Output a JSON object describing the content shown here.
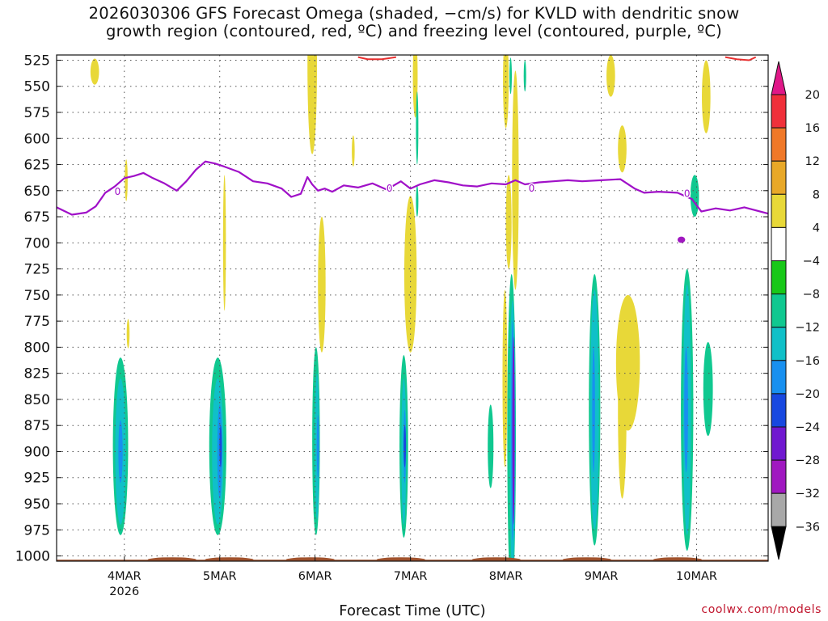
{
  "chart_data": {
    "type": "heatmap",
    "title": [
      "2026030306 GFS Forecast Omega (shaded, −cm/s) for KVLD with dendritic snow",
      "growth region (contoured, red, ºC) and freezing level (contoured, purple, ºC)"
    ],
    "xlabel": "Forecast Time (UTC)",
    "credit": "coolwx.com/models",
    "yaxis": {
      "ticks": [
        525,
        550,
        575,
        600,
        625,
        650,
        675,
        700,
        725,
        750,
        775,
        800,
        825,
        850,
        875,
        900,
        925,
        950,
        975,
        1000
      ],
      "range": [
        520,
        1005
      ],
      "units": "hPa",
      "inverted": true
    },
    "xaxis": {
      "range_days": [
        3.29,
        10.75
      ],
      "ticks": [
        {
          "day": 4,
          "label": "4MAR",
          "sublabel": "2026"
        },
        {
          "day": 5,
          "label": "5MAR",
          "sublabel": ""
        },
        {
          "day": 6,
          "label": "6MAR",
          "sublabel": ""
        },
        {
          "day": 7,
          "label": "7MAR",
          "sublabel": ""
        },
        {
          "day": 8,
          "label": "8MAR",
          "sublabel": ""
        },
        {
          "day": 9,
          "label": "9MAR",
          "sublabel": ""
        },
        {
          "day": 10,
          "label": "10MAR",
          "sublabel": ""
        }
      ],
      "grid": true
    },
    "colorbar": {
      "labels": [
        "20",
        "16",
        "12",
        "8",
        "4",
        "−4",
        "−8",
        "−12",
        "−16",
        "−20",
        "−24",
        "−28",
        "−32",
        "−36"
      ],
      "colors": [
        "#f0303a",
        "#f07828",
        "#e8a828",
        "#e8d838",
        "#ffffff",
        "#18c818",
        "#10c890",
        "#10c0c8",
        "#1890f0",
        "#1848e0",
        "#7018d0",
        "#a018c0",
        "#a8a8a8"
      ],
      "top_arrow_color": "#e01888",
      "bottom_arrow_color": "#000000"
    },
    "colors": {
      "freezing_level": "#a010c8",
      "dgz": "#e83030",
      "ground": "#a0522d"
    },
    "freezing_level": {
      "day": [
        3.29,
        3.45,
        3.6,
        3.7,
        3.8,
        3.9,
        4.0,
        4.1,
        4.2,
        4.3,
        4.42,
        4.55,
        4.65,
        4.75,
        4.85,
        4.95,
        5.05,
        5.2,
        5.35,
        5.5,
        5.65,
        5.75,
        5.85,
        5.92,
        5.97,
        6.03,
        6.1,
        6.18,
        6.3,
        6.45,
        6.6,
        6.75,
        6.9,
        7.0,
        7.1,
        7.25,
        7.4,
        7.55,
        7.7,
        7.85,
        8.0,
        8.1,
        8.2,
        8.35,
        8.5,
        8.65,
        8.8,
        9.0,
        9.2,
        9.35,
        9.45,
        9.6,
        9.8,
        9.95,
        10.05,
        10.2,
        10.35,
        10.5,
        10.75
      ],
      "hpa": [
        666,
        673,
        671,
        665,
        652,
        646,
        638,
        636,
        633,
        638,
        643,
        650,
        641,
        630,
        622,
        624,
        627,
        632,
        641,
        643,
        648,
        656,
        653,
        637,
        644,
        650,
        648,
        651,
        645,
        647,
        643,
        649,
        641,
        648,
        644,
        640,
        642,
        645,
        646,
        643,
        644,
        640,
        644,
        642,
        641,
        640,
        641,
        640,
        639,
        648,
        652,
        651,
        652,
        658,
        670,
        667,
        669,
        666,
        672
      ]
    },
    "freezing_level_labels": [
      {
        "day": 3.93,
        "hpa": 650,
        "text": "0"
      },
      {
        "day": 6.78,
        "hpa": 647,
        "text": "0"
      },
      {
        "day": 8.27,
        "hpa": 647,
        "text": "0"
      },
      {
        "day": 9.9,
        "hpa": 652,
        "text": "0"
      }
    ],
    "dgz_segments": [
      {
        "day": [
          6.45,
          6.55,
          6.7,
          6.78,
          6.85
        ],
        "hpa": [
          522,
          524,
          524,
          523,
          522
        ]
      },
      {
        "day": [
          10.3,
          10.42,
          10.55,
          10.62
        ],
        "hpa": [
          522,
          524,
          525,
          522
        ]
      }
    ],
    "omega_cells": [
      {
        "day": 3.96,
        "hpa": 895,
        "dd": 0.16,
        "dh": 170,
        "level": "-8"
      },
      {
        "day": 3.96,
        "hpa": 900,
        "dd": 0.11,
        "dh": 140,
        "level": "-12"
      },
      {
        "day": 3.96,
        "hpa": 900,
        "dd": 0.045,
        "dh": 60,
        "level": "-16"
      },
      {
        "day": 4.98,
        "hpa": 895,
        "dd": 0.18,
        "dh": 170,
        "level": "-8"
      },
      {
        "day": 4.98,
        "hpa": 900,
        "dd": 0.12,
        "dh": 140,
        "level": "-12"
      },
      {
        "day": 5.0,
        "hpa": 900,
        "dd": 0.05,
        "dh": 90,
        "level": "-16"
      },
      {
        "day": 5.01,
        "hpa": 895,
        "dd": 0.012,
        "dh": 40,
        "level": "-20"
      },
      {
        "day": 6.01,
        "hpa": 890,
        "dd": 0.08,
        "dh": 180,
        "level": "-8"
      },
      {
        "day": 6.02,
        "hpa": 895,
        "dd": 0.045,
        "dh": 140,
        "level": "-12"
      },
      {
        "day": 6.03,
        "hpa": 895,
        "dd": 0.018,
        "dh": 60,
        "level": "-16"
      },
      {
        "day": 6.93,
        "hpa": 895,
        "dd": 0.09,
        "dh": 175,
        "level": "-8"
      },
      {
        "day": 6.93,
        "hpa": 900,
        "dd": 0.05,
        "dh": 140,
        "level": "-12"
      },
      {
        "day": 6.94,
        "hpa": 895,
        "dd": 0.02,
        "dh": 70,
        "level": "-16"
      },
      {
        "day": 6.94,
        "hpa": 895,
        "dd": 0.01,
        "dh": 40,
        "level": "-20"
      },
      {
        "day": 7.84,
        "hpa": 895,
        "dd": 0.06,
        "dh": 80,
        "level": "-8"
      },
      {
        "day": 8.06,
        "hpa": 885,
        "dd": 0.09,
        "dh": 310,
        "level": "-8"
      },
      {
        "day": 8.07,
        "hpa": 885,
        "dd": 0.06,
        "dh": 260,
        "level": "-12"
      },
      {
        "day": 8.07,
        "hpa": 880,
        "dd": 0.03,
        "dh": 210,
        "level": "-16"
      },
      {
        "day": 8.08,
        "hpa": 880,
        "dd": 0.012,
        "dh": 180,
        "level": "-24"
      },
      {
        "day": 8.93,
        "hpa": 860,
        "dd": 0.12,
        "dh": 260,
        "level": "-8"
      },
      {
        "day": 8.93,
        "hpa": 860,
        "dd": 0.09,
        "dh": 230,
        "level": "-12"
      },
      {
        "day": 8.92,
        "hpa": 860,
        "dd": 0.03,
        "dh": 120,
        "level": "-16"
      },
      {
        "day": 9.9,
        "hpa": 860,
        "dd": 0.13,
        "dh": 270,
        "level": "-8"
      },
      {
        "day": 9.9,
        "hpa": 860,
        "dd": 0.08,
        "dh": 240,
        "level": "-12"
      },
      {
        "day": 9.89,
        "hpa": 860,
        "dd": 0.04,
        "dh": 120,
        "level": "-16"
      },
      {
        "day": 9.98,
        "hpa": 655,
        "dd": 0.09,
        "dh": 40,
        "level": "-8"
      },
      {
        "day": 10.12,
        "hpa": 840,
        "dd": 0.1,
        "dh": 90,
        "level": "-8"
      },
      {
        "day": 5.97,
        "hpa": 530,
        "dd": 0.1,
        "dh": 170,
        "level": "4"
      },
      {
        "day": 6.07,
        "hpa": 740,
        "dd": 0.08,
        "dh": 130,
        "level": "4"
      },
      {
        "day": 5.05,
        "hpa": 700,
        "dd": 0.03,
        "dh": 130,
        "level": "4"
      },
      {
        "day": 7.0,
        "hpa": 730,
        "dd": 0.13,
        "dh": 150,
        "level": "4"
      },
      {
        "day": 7.05,
        "hpa": 540,
        "dd": 0.05,
        "dh": 80,
        "level": "4"
      },
      {
        "day": 8.0,
        "hpa": 545,
        "dd": 0.06,
        "dh": 90,
        "level": "4"
      },
      {
        "day": 8.03,
        "hpa": 680,
        "dd": 0.06,
        "dh": 90,
        "level": "4"
      },
      {
        "day": 8.1,
        "hpa": 640,
        "dd": 0.07,
        "dh": 210,
        "level": "4"
      },
      {
        "day": 7.99,
        "hpa": 830,
        "dd": 0.05,
        "dh": 170,
        "level": "4"
      },
      {
        "day": 9.28,
        "hpa": 815,
        "dd": 0.25,
        "dh": 130,
        "level": "4"
      },
      {
        "day": 9.22,
        "hpa": 860,
        "dd": 0.09,
        "dh": 170,
        "level": "4"
      },
      {
        "day": 9.1,
        "hpa": 540,
        "dd": 0.09,
        "dh": 40,
        "level": "4"
      },
      {
        "day": 9.22,
        "hpa": 610,
        "dd": 0.09,
        "dh": 45,
        "level": "4"
      },
      {
        "day": 10.1,
        "hpa": 560,
        "dd": 0.09,
        "dh": 70,
        "level": "4"
      },
      {
        "day": 3.69,
        "hpa": 536,
        "dd": 0.09,
        "dh": 25,
        "level": "4"
      },
      {
        "day": 6.4,
        "hpa": 612,
        "dd": 0.03,
        "dh": 30,
        "level": "4"
      },
      {
        "day": 4.04,
        "hpa": 787,
        "dd": 0.03,
        "dh": 28,
        "level": "4"
      },
      {
        "day": 4.02,
        "hpa": 640,
        "dd": 0.03,
        "dh": 40,
        "level": "4"
      },
      {
        "day": 7.07,
        "hpa": 590,
        "dd": 0.02,
        "dh": 70,
        "level": "-8"
      },
      {
        "day": 7.07,
        "hpa": 660,
        "dd": 0.02,
        "dh": 30,
        "level": "-8"
      },
      {
        "day": 8.2,
        "hpa": 540,
        "dd": 0.02,
        "dh": 30,
        "level": "-8"
      },
      {
        "day": 8.05,
        "hpa": 540,
        "dd": 0.02,
        "dh": 35,
        "level": "-8"
      },
      {
        "day": 9.84,
        "hpa": 697,
        "dd": 0.08,
        "dh": 6,
        "level": "-28"
      }
    ]
  }
}
